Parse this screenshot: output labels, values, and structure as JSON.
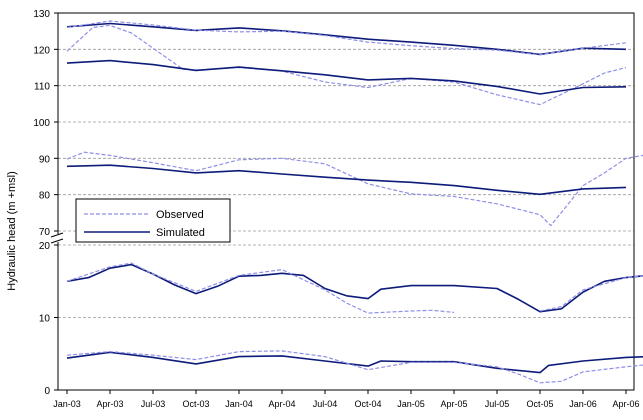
{
  "chart_data": {
    "type": "line",
    "title": "",
    "xlabel": "",
    "ylabel": "Hydraulic head (m +msl)",
    "x_ticks": [
      "Jan-03",
      "Apr-03",
      "Jul-03",
      "Oct-03",
      "Jan-04",
      "Apr-04",
      "Jul-04",
      "Oct-04",
      "Jan-05",
      "Apr-05",
      "Jul-05",
      "Oct-05",
      "Jan-06",
      "Apr-06"
    ],
    "upper_axis": {
      "ylim": [
        70,
        130
      ],
      "ticks": [
        70,
        80,
        90,
        100,
        110,
        120,
        130
      ]
    },
    "lower_axis": {
      "ylim": [
        0,
        20
      ],
      "ticks": [
        0,
        10,
        20
      ]
    },
    "grid": "horizontal dashed",
    "legend": {
      "position": "middle-left",
      "entries": [
        "Observed",
        "Simulated"
      ]
    },
    "colors": {
      "simulated": "#0d1b7a",
      "observed": "#8f8fe6"
    },
    "series": [
      {
        "name": "Simulated",
        "panel": "upper",
        "x": [
          0,
          1,
          2,
          3,
          4,
          5,
          6,
          7,
          8,
          9,
          10,
          11,
          12,
          13
        ],
        "values": [
          126.2,
          127.1,
          126.2,
          125.2,
          125.9,
          125.1,
          124.0,
          122.8,
          122.0,
          121.1,
          120.0,
          118.6,
          120.3,
          120.0
        ]
      },
      {
        "name": "Observed",
        "panel": "upper",
        "x": [
          0,
          0.6,
          1,
          1.5,
          2,
          2.7,
          3,
          4,
          5,
          6,
          7,
          8,
          9,
          10,
          11,
          12,
          12.5,
          13
        ],
        "values": [
          119.5,
          126.0,
          126.6,
          124.5,
          120.3,
          114.5,
          114.3,
          115.0,
          114.0,
          111.0,
          109.5,
          112.0,
          111.0,
          107.5,
          104.8,
          110.5,
          113.5,
          115.0
        ]
      },
      {
        "name": "Observed",
        "panel": "upper",
        "x": [
          0,
          1,
          2,
          3,
          4,
          5,
          6,
          7,
          8,
          9,
          10,
          11,
          11.5,
          12,
          13
        ],
        "values": [
          126.0,
          127.8,
          126.7,
          125.3,
          124.8,
          125.0,
          123.8,
          122.0,
          121.0,
          120.2,
          119.8,
          118.5,
          119.5,
          120.3,
          121.8
        ]
      },
      {
        "name": "Simulated",
        "panel": "upper",
        "x": [
          0,
          1,
          2,
          3,
          4,
          5,
          6,
          7,
          8,
          9,
          10,
          11,
          12,
          13
        ],
        "values": [
          116.2,
          116.9,
          115.8,
          114.2,
          115.1,
          114.1,
          113.0,
          111.6,
          112.0,
          111.3,
          109.8,
          107.7,
          109.5,
          109.7
        ]
      },
      {
        "name": "Observed",
        "panel": "upper",
        "x": [
          0,
          0.4,
          1,
          2,
          3,
          4,
          5,
          6,
          7,
          8,
          9,
          10,
          11,
          11.25,
          12,
          12.5,
          13,
          13.5
        ],
        "values": [
          89.8,
          91.7,
          90.8,
          88.8,
          86.6,
          89.6,
          90.0,
          88.5,
          83.0,
          80.2,
          79.5,
          77.5,
          74.5,
          71.5,
          82.5,
          86.0,
          90.0,
          91.0
        ]
      },
      {
        "name": "Simulated",
        "panel": "upper",
        "x": [
          0,
          1,
          2,
          3,
          4,
          5,
          6,
          7,
          8,
          9,
          10,
          11,
          12,
          13
        ],
        "values": [
          87.8,
          88.1,
          87.2,
          86.0,
          86.6,
          85.7,
          84.8,
          84.0,
          83.4,
          82.5,
          81.2,
          80.1,
          81.6,
          82.0
        ]
      },
      {
        "name": "Simulated",
        "panel": "lower",
        "x": [
          0,
          0.5,
          1,
          1.5,
          2,
          2.5,
          3,
          3.5,
          4,
          4.5,
          5,
          5.5,
          6,
          6.5,
          7,
          7.3,
          8,
          9,
          10,
          10.5,
          11,
          11.5,
          12,
          12.5,
          13,
          13.5
        ],
        "values": [
          15.0,
          15.5,
          16.8,
          17.3,
          16.0,
          14.5,
          13.3,
          14.3,
          15.7,
          15.8,
          16.1,
          15.8,
          14.0,
          13.0,
          12.6,
          13.9,
          14.4,
          14.4,
          14.0,
          12.5,
          10.8,
          11.2,
          13.5,
          15.0,
          15.5,
          15.8
        ]
      },
      {
        "name": "Observed",
        "panel": "lower",
        "x": [
          0,
          1,
          1.5,
          2,
          3,
          4,
          5,
          6,
          6.5,
          7,
          8,
          8.5,
          9
        ],
        "values": [
          15.0,
          17.0,
          17.5,
          16.0,
          13.6,
          15.8,
          16.6,
          13.8,
          12.0,
          10.6,
          10.9,
          11.0,
          10.7
        ]
      },
      {
        "name": "Observed",
        "panel": "lower",
        "x": [
          11,
          11.5,
          12,
          13,
          13.5
        ],
        "values": [
          10.9,
          11.5,
          13.8,
          15.5,
          15.8
        ]
      },
      {
        "name": "Simulated",
        "panel": "lower",
        "x": [
          0,
          1,
          2,
          3,
          4,
          5,
          6,
          7,
          7.3,
          8,
          9,
          10,
          11,
          11.2,
          12,
          13,
          13.5
        ],
        "values": [
          4.4,
          5.2,
          4.5,
          3.6,
          4.6,
          4.7,
          4.0,
          3.3,
          4.0,
          3.9,
          3.9,
          3.0,
          2.4,
          3.4,
          4.0,
          4.5,
          4.6
        ]
      },
      {
        "name": "Observed",
        "panel": "lower",
        "x": [
          0,
          1,
          2,
          3,
          4,
          5,
          6,
          7,
          8,
          9,
          10,
          10.5,
          11,
          11.5,
          12,
          13,
          13.5
        ],
        "values": [
          4.8,
          5.3,
          4.8,
          4.2,
          5.3,
          5.4,
          4.6,
          2.8,
          3.8,
          3.8,
          3.2,
          2.2,
          1.0,
          1.2,
          2.5,
          3.2,
          3.5
        ]
      }
    ]
  }
}
